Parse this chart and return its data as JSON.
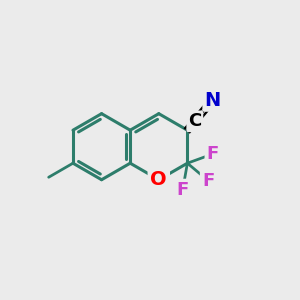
{
  "background_color": "#ebebeb",
  "bond_color": "#2d7d6b",
  "bond_width": 2.2,
  "atom_colors": {
    "O": "#ff0000",
    "F": "#cc44cc",
    "N": "#0000cc",
    "C_label": "#000000"
  },
  "font_size_atoms": 14,
  "font_size_F": 13,
  "font_size_CN": 13,
  "figsize": [
    3.0,
    3.0
  ],
  "dpi": 100,
  "bl": 1.0
}
